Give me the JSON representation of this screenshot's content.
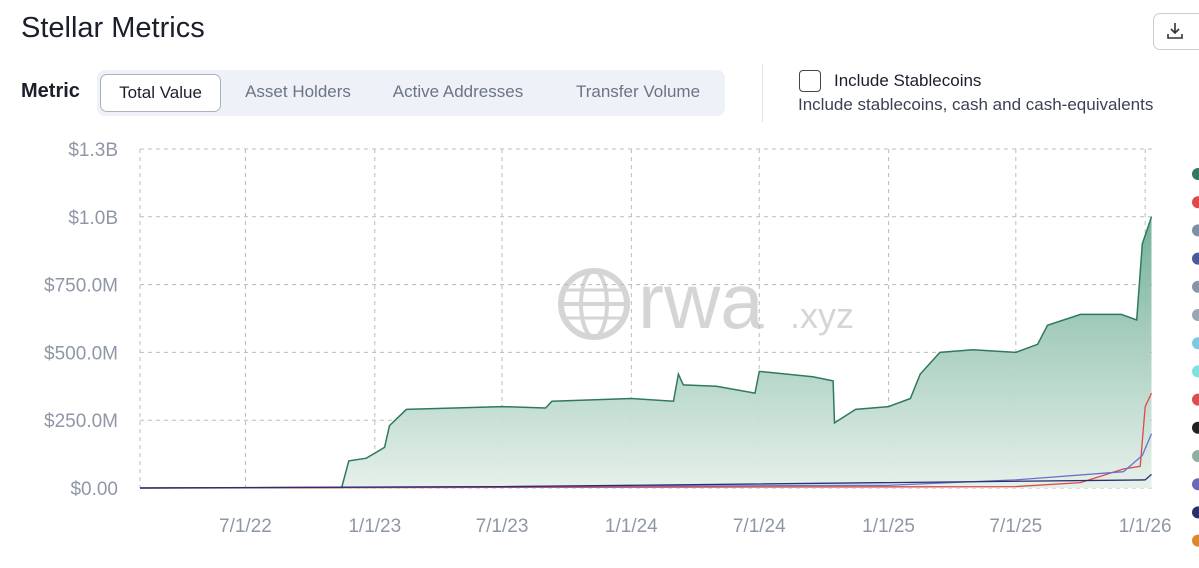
{
  "header": {
    "title": "Stellar Metrics"
  },
  "controls": {
    "metric_label": "Metric",
    "tabs": [
      "Total Value",
      "Asset Holders",
      "Active Addresses",
      "Transfer Volume"
    ],
    "active_tab": 0,
    "checkbox_label": "Include Stablecoins",
    "checkbox_description": "Include stablecoins, cash and cash-equivalents"
  },
  "watermark": {
    "main": "rwa",
    "suffix": ".xyz"
  },
  "chart_data": {
    "type": "area",
    "xlim": [
      "2/1/22",
      "1/15/26"
    ],
    "xticks": [
      "7/1/22",
      "1/1/23",
      "7/1/23",
      "1/1/24",
      "7/1/24",
      "1/1/25",
      "7/1/25",
      "1/1/26"
    ],
    "ylim": [
      0,
      1250000000
    ],
    "yticks": [
      {
        "value": 0,
        "label": "$0.00"
      },
      {
        "value": 250000000,
        "label": "$250.0M"
      },
      {
        "value": 500000000,
        "label": "$500.0M"
      },
      {
        "value": 750000000,
        "label": "$750.0M"
      },
      {
        "value": 1000000000,
        "label": "$1.0B"
      },
      {
        "value": 1250000000,
        "label": "$1.3B"
      }
    ],
    "grid": true,
    "series": [
      {
        "color": "#2f7a5c",
        "x": [
          "2/1/22",
          "11/15/22",
          "11/25/22",
          "12/20/22",
          "1/15/23",
          "1/22/23",
          "2/15/23",
          "7/1/23",
          "9/1/23",
          "9/10/23",
          "1/1/24",
          "3/1/24",
          "3/8/24",
          "3/15/24",
          "5/1/24",
          "6/25/24",
          "7/1/24",
          "9/15/24",
          "10/14/24",
          "10/16/24",
          "11/15/24",
          "1/1/25",
          "2/1/25",
          "2/15/25",
          "3/15/25",
          "5/1/25",
          "7/1/25",
          "8/1/25",
          "8/15/25",
          "10/1/25",
          "11/28/25",
          "12/20/25",
          "12/28/25",
          "1/10/26"
        ],
        "values": [
          0,
          2000000,
          100000000,
          110000000,
          150000000,
          230000000,
          290000000,
          300000000,
          295000000,
          320000000,
          330000000,
          320000000,
          420000000,
          380000000,
          375000000,
          350000000,
          430000000,
          410000000,
          395000000,
          240000000,
          290000000,
          300000000,
          330000000,
          420000000,
          500000000,
          510000000,
          500000000,
          530000000,
          600000000,
          640000000,
          640000000,
          620000000,
          900000000,
          1000000000
        ]
      },
      {
        "color": "#e0484a",
        "x": [
          "2/1/22",
          "7/1/25",
          "10/1/25",
          "12/1/25",
          "12/25/25",
          "1/1/26",
          "1/10/26"
        ],
        "values": [
          0,
          5000000,
          20000000,
          70000000,
          80000000,
          300000000,
          350000000
        ]
      },
      {
        "color": "#6a72c8",
        "x": [
          "2/1/22",
          "1/1/25",
          "7/1/25",
          "12/1/25",
          "12/28/25",
          "1/10/26"
        ],
        "values": [
          0,
          10000000,
          30000000,
          60000000,
          120000000,
          200000000
        ]
      },
      {
        "color": "#2e2e6e",
        "x": [
          "2/1/22",
          "7/1/23",
          "1/1/24",
          "1/1/26",
          "1/10/26"
        ],
        "values": [
          0,
          5000000,
          10000000,
          30000000,
          50000000
        ]
      }
    ],
    "legend_colors": [
      "#2f7a5c",
      "#e0484a",
      "#7f8fa6",
      "#4a5a9a",
      "#8a94a6",
      "#9aa5b5",
      "#7ec8e3",
      "#7fe0e0",
      "#d95050",
      "#222222",
      "#8fb0a0",
      "#6a6ab8",
      "#2e2e6e",
      "#d98a2e"
    ]
  }
}
